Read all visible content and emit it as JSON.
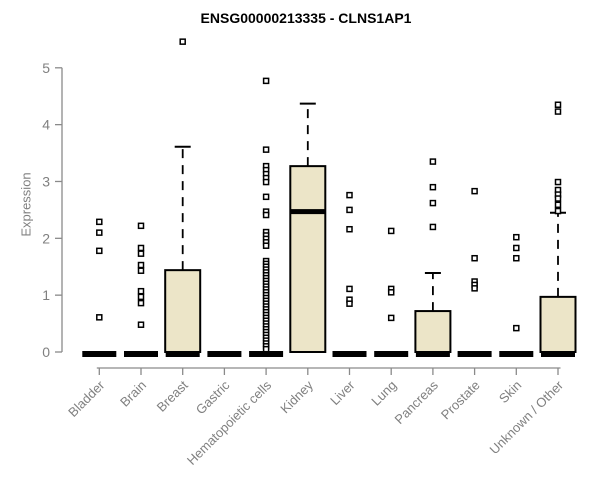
{
  "title": "ENSG00000213335 - CLNS1AP1",
  "chart_data": {
    "type": "boxplot",
    "title": "ENSG00000213335 - CLNS1AP1",
    "xlabel": "",
    "ylabel": "Expression",
    "ylim": [
      0,
      5
    ],
    "yticks": [
      0,
      1,
      2,
      3,
      4,
      5
    ],
    "grid": "off",
    "legend": "none",
    "categories": [
      "Bladder",
      "Brain",
      "Breast",
      "Gastric",
      "Hematopoietic cells",
      "Kidney",
      "Liver",
      "Lung",
      "Pancreas",
      "Prostate",
      "Skin",
      "Unknown / Other"
    ],
    "series": [
      {
        "category": "Bladder",
        "q1": 0,
        "median": 0,
        "q3": 0,
        "whisker_low": 0,
        "whisker_high": 0,
        "outliers": [
          2.29,
          2.1,
          1.78,
          0.61
        ]
      },
      {
        "category": "Brain",
        "q1": 0,
        "median": 0,
        "q3": 0,
        "whisker_low": 0,
        "whisker_high": 0,
        "outliers": [
          2.22,
          1.83,
          1.73,
          1.53,
          1.43,
          1.07,
          0.97,
          0.86,
          0.48
        ]
      },
      {
        "category": "Breast",
        "q1": 0,
        "median": 0,
        "q3": 1.44,
        "whisker_low": 0,
        "whisker_high": 3.61,
        "outliers": [
          5.46
        ]
      },
      {
        "category": "Gastric",
        "q1": 0,
        "median": 0,
        "q3": 0,
        "whisker_low": 0,
        "whisker_high": 0,
        "outliers": []
      },
      {
        "category": "Hematopoietic cells",
        "q1": 0,
        "median": 0,
        "q3": 0,
        "whisker_low": 0,
        "whisker_high": 0,
        "outliers": [
          4.77,
          3.56,
          3.27,
          3.2,
          3.13,
          3.06,
          2.99,
          2.73,
          2.47,
          2.41,
          2.11,
          2.05,
          1.99,
          1.93,
          1.87,
          1.6,
          1.55,
          1.5,
          1.45,
          1.4,
          1.35,
          1.3,
          1.25,
          1.2,
          1.15,
          1.1,
          1.05,
          1.0,
          0.95,
          0.9,
          0.85,
          0.8,
          0.75,
          0.7,
          0.65,
          0.6,
          0.55,
          0.5,
          0.45,
          0.4,
          0.35,
          0.3,
          0.25,
          0.2,
          0.15,
          0.1,
          0.05
        ]
      },
      {
        "category": "Kidney",
        "q1": 0,
        "median": 2.47,
        "q3": 3.27,
        "whisker_low": 0,
        "whisker_high": 4.37,
        "outliers": []
      },
      {
        "category": "Liver",
        "q1": 0,
        "median": 0,
        "q3": 0,
        "whisker_low": 0,
        "whisker_high": 0,
        "outliers": [
          2.76,
          2.5,
          2.16,
          1.11,
          0.92,
          0.85
        ]
      },
      {
        "category": "Lung",
        "q1": 0,
        "median": 0,
        "q3": 0,
        "whisker_low": 0,
        "whisker_high": 0,
        "outliers": [
          2.13,
          1.11,
          1.05,
          0.6
        ]
      },
      {
        "category": "Pancreas",
        "q1": 0,
        "median": 0,
        "q3": 0.72,
        "whisker_low": 0,
        "whisker_high": 1.39,
        "outliers": [
          3.35,
          2.9,
          2.62,
          2.2
        ]
      },
      {
        "category": "Prostate",
        "q1": 0,
        "median": 0,
        "q3": 0,
        "whisker_low": 0,
        "whisker_high": 0,
        "outliers": [
          2.83,
          1.65,
          1.24,
          1.18,
          1.12
        ]
      },
      {
        "category": "Skin",
        "q1": 0,
        "median": 0,
        "q3": 0,
        "whisker_low": 0,
        "whisker_high": 0,
        "outliers": [
          2.02,
          1.83,
          1.65,
          0.42
        ]
      },
      {
        "category": "Unknown / Other",
        "q1": 0,
        "median": 0,
        "q3": 0.97,
        "whisker_low": 0,
        "whisker_high": 2.45,
        "outliers": [
          4.35,
          4.23,
          2.99,
          2.85,
          2.77,
          2.7,
          2.59,
          2.48
        ]
      }
    ],
    "colors": {
      "box_fill": "#ece5c8",
      "box_border": "#000000",
      "median": "#000000",
      "whisker": "#000000",
      "outlier_stroke": "#000000",
      "outlier_fill": "#ffffff",
      "axis": "#8a8a8a",
      "tick_label": "#808080",
      "title": "#000000",
      "background": "#ffffff"
    }
  }
}
